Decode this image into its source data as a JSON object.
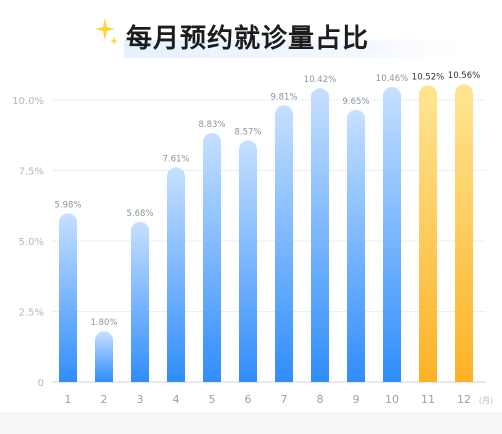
{
  "chart_data": {
    "type": "bar",
    "title": "每月预约就诊量占比",
    "categories": [
      "1",
      "2",
      "3",
      "4",
      "5",
      "6",
      "7",
      "8",
      "9",
      "10",
      "11",
      "12"
    ],
    "values": [
      5.98,
      1.8,
      5.68,
      7.61,
      8.83,
      8.57,
      9.81,
      10.42,
      9.65,
      10.46,
      10.52,
      10.56
    ],
    "value_labels": [
      "5.98%",
      "1.80%",
      "5.68%",
      "7.61%",
      "8.83%",
      "8.57%",
      "9.81%",
      "10.42%",
      "9.65%",
      "10.46%",
      "10.52%",
      "10.56%"
    ],
    "ylim": [
      0,
      10
    ],
    "yticks": [
      0,
      2.5,
      5,
      7.5,
      10
    ],
    "ytick_labels": [
      "0",
      "2.5%",
      "5.0%",
      "7.5%",
      "10.0%"
    ],
    "xlabel_unit": "(月)",
    "grid": true,
    "colors": {
      "blue_top": "#c6e0ff",
      "blue_bottom": "#2f8dfb",
      "gold_top": "#ffe592",
      "gold_bottom": "#fdb226",
      "highlight_indices": [
        10,
        11
      ]
    }
  }
}
